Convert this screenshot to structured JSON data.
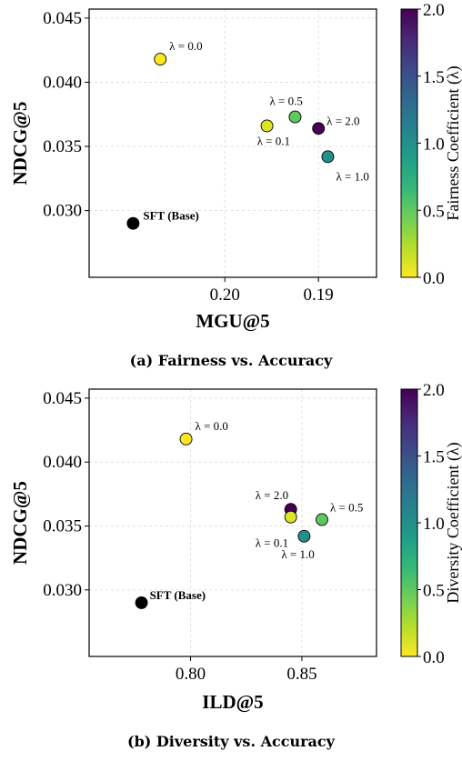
{
  "colors": {
    "viridis": [
      "#fde725",
      "#b5de2b",
      "#6ece58",
      "#35b779",
      "#1f9e89",
      "#26828e",
      "#31688e",
      "#3e4989",
      "#482878",
      "#440154"
    ],
    "base_point": "#000000",
    "grid": "#d8d8d8"
  },
  "chart_data": [
    {
      "type": "scatter",
      "caption": "(a) Fairness vs. Accuracy",
      "xlabel": "MGU@5",
      "ylabel": "NDCG@5",
      "x_reversed": true,
      "xlim": [
        0.2145,
        0.1838
      ],
      "ylim": [
        0.0248,
        0.0457
      ],
      "xticks": [
        0.2,
        0.19
      ],
      "xtick_labels": [
        "0.20",
        "0.19"
      ],
      "yticks": [
        0.03,
        0.035,
        0.04,
        0.045
      ],
      "ytick_labels": [
        "0.030",
        "0.035",
        "0.040",
        "0.045"
      ],
      "grid": true,
      "colorbar": {
        "label": "Fairness Coefficient (λ)",
        "range": [
          0.0,
          2.0
        ],
        "ticks": [
          0.0,
          0.5,
          1.0,
          1.5,
          2.0
        ],
        "tick_labels": [
          "0.0",
          "0.5",
          "1.0",
          "1.5",
          "2.0"
        ]
      },
      "points": [
        {
          "label": "SFT (Base)",
          "x": 0.2098,
          "y": 0.029,
          "lambda": null
        },
        {
          "label": "λ = 0.0",
          "x": 0.2069,
          "y": 0.0418,
          "lambda": 0.0
        },
        {
          "label": "λ = 0.1",
          "x": 0.1955,
          "y": 0.0366,
          "lambda": 0.1
        },
        {
          "label": "λ = 0.5",
          "x": 0.1925,
          "y": 0.0373,
          "lambda": 0.5
        },
        {
          "label": "λ = 2.0",
          "x": 0.19,
          "y": 0.0364,
          "lambda": 2.0
        },
        {
          "label": "λ = 1.0",
          "x": 0.189,
          "y": 0.0342,
          "lambda": 1.0
        }
      ]
    },
    {
      "type": "scatter",
      "caption": "(b) Diversity vs. Accuracy",
      "xlabel": "ILD@5",
      "ylabel": "NDCG@5",
      "x_reversed": false,
      "xlim": [
        0.7545,
        0.8835
      ],
      "ylim": [
        0.0248,
        0.0457
      ],
      "xticks": [
        0.8,
        0.85
      ],
      "xtick_labels": [
        "0.80",
        "0.85"
      ],
      "yticks": [
        0.03,
        0.035,
        0.04,
        0.045
      ],
      "ytick_labels": [
        "0.030",
        "0.035",
        "0.040",
        "0.045"
      ],
      "grid": true,
      "colorbar": {
        "label": "Diversity Coefficient (λ)",
        "range": [
          0.0,
          2.0
        ],
        "ticks": [
          0.0,
          0.5,
          1.0,
          1.5,
          2.0
        ],
        "tick_labels": [
          "0.0",
          "0.5",
          "1.0",
          "1.5",
          "2.0"
        ]
      },
      "points": [
        {
          "label": "SFT (Base)",
          "x": 0.778,
          "y": 0.029,
          "lambda": null
        },
        {
          "label": "λ = 0.0",
          "x": 0.798,
          "y": 0.0418,
          "lambda": 0.0
        },
        {
          "label": "λ = 2.0",
          "x": 0.845,
          "y": 0.0363,
          "lambda": 2.0
        },
        {
          "label": "λ = 0.1",
          "x": 0.845,
          "y": 0.0357,
          "lambda": 0.1
        },
        {
          "label": "λ = 0.5",
          "x": 0.859,
          "y": 0.0355,
          "lambda": 0.5
        },
        {
          "label": "λ = 1.0",
          "x": 0.851,
          "y": 0.0342,
          "lambda": 1.0
        }
      ]
    }
  ]
}
